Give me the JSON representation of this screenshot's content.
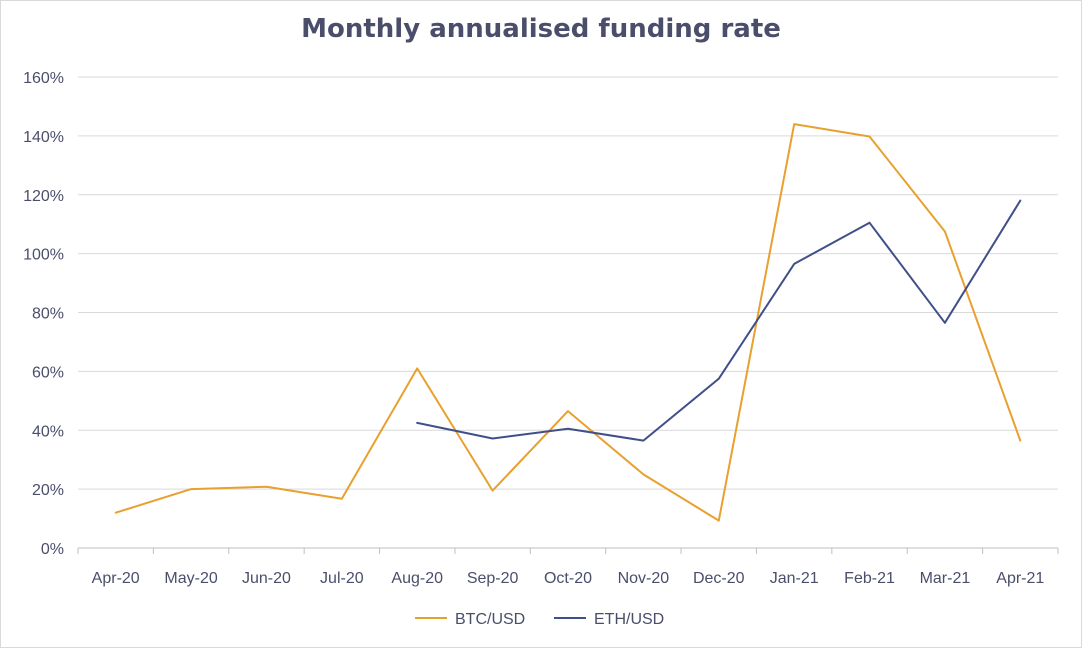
{
  "chart_data": {
    "type": "line",
    "title": "Monthly annualised funding rate",
    "categories": [
      "Apr-20",
      "May-20",
      "Jun-20",
      "Jul-20",
      "Aug-20",
      "Sep-20",
      "Oct-20",
      "Nov-20",
      "Dec-20",
      "Jan-21",
      "Feb-21",
      "Mar-21",
      "Apr-21"
    ],
    "ylim": [
      0,
      160
    ],
    "yticks": [
      0,
      20,
      40,
      60,
      80,
      100,
      120,
      140,
      160
    ],
    "ytick_labels": [
      "0%",
      "20%",
      "40%",
      "60%",
      "80%",
      "100%",
      "120%",
      "140%",
      "160%"
    ],
    "grid": true,
    "legend_position": "bottom",
    "series": [
      {
        "name": "BTC/USD",
        "color": "#e8a02f",
        "values": [
          12,
          20,
          20.8,
          16.7,
          61,
          19.5,
          46.5,
          25,
          9.3,
          144,
          139.8,
          107.5,
          36.5
        ]
      },
      {
        "name": "ETH/USD",
        "color": "#3f4f8a",
        "values": [
          null,
          null,
          null,
          null,
          42.5,
          37.2,
          40.5,
          36.5,
          57.5,
          96.5,
          110.5,
          76.5,
          118
        ]
      }
    ]
  }
}
